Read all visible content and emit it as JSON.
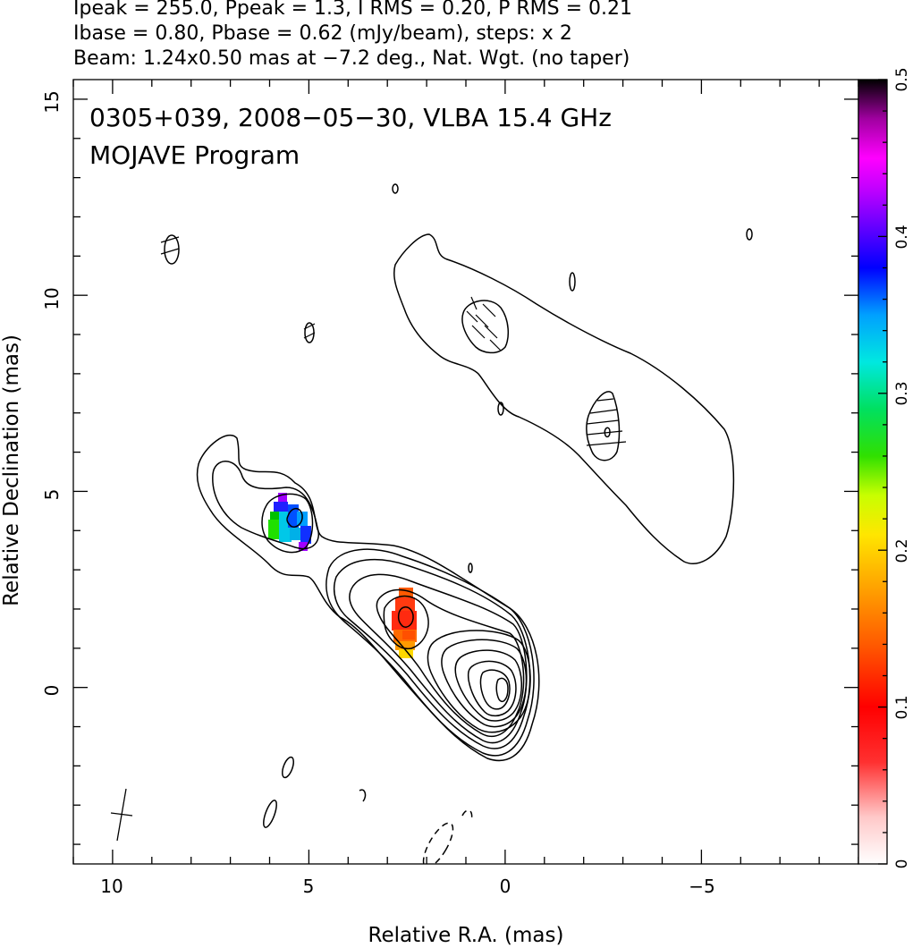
{
  "chart_data": {
    "type": "heatmap",
    "header_lines": [
      "Ipeak = 255.0, Ppeak = 1.3, I RMS = 0.20, P RMS = 0.21",
      "Ibase = 0.80, Pbase = 0.62 (mJy/beam), steps: x 2",
      "Beam: 1.24x0.50 mas at −7.2 deg., Nat. Wgt. (no taper)"
    ],
    "annotations": [
      "0305+039, 2008−05−30, VLBA 15.4 GHz",
      "MOJAVE Program"
    ],
    "xlabel": "Relative R.A. (mas)",
    "ylabel": "Relative Declination (mas)",
    "xlim": [
      11,
      -9
    ],
    "ylim": [
      -4.5,
      15.5
    ],
    "x_ticks": [
      10,
      5,
      0,
      -5
    ],
    "x_tick_labels": [
      "10",
      "5",
      "0",
      "−5"
    ],
    "y_ticks": [
      0,
      5,
      10,
      15
    ],
    "y_tick_labels": [
      "0",
      "5",
      "10",
      "15"
    ],
    "colorbar": {
      "range": [
        0,
        0.5
      ],
      "ticks": [
        0,
        0.1,
        0.2,
        0.3,
        0.4,
        0.5
      ],
      "tick_labels": [
        "0",
        "0.1",
        "0.2",
        "0.3",
        "0.4",
        "0.5"
      ]
    },
    "contour_regions": [
      {
        "name": "core",
        "x": 0,
        "y": 0,
        "levels": 10
      },
      {
        "name": "inner jet knot",
        "x": 2.6,
        "y": 1.9,
        "levels": 6
      },
      {
        "name": "outer east knot",
        "x": 5.3,
        "y": 4.4,
        "levels": 3
      },
      {
        "name": "north-west extended jet",
        "x": -1.5,
        "y": 7.5,
        "levels": 1
      }
    ],
    "polarization_regions": [
      {
        "x": 2.6,
        "y": 1.9,
        "value": 0.1
      },
      {
        "x": 5.4,
        "y": 4.3,
        "value": 0.33
      }
    ]
  }
}
